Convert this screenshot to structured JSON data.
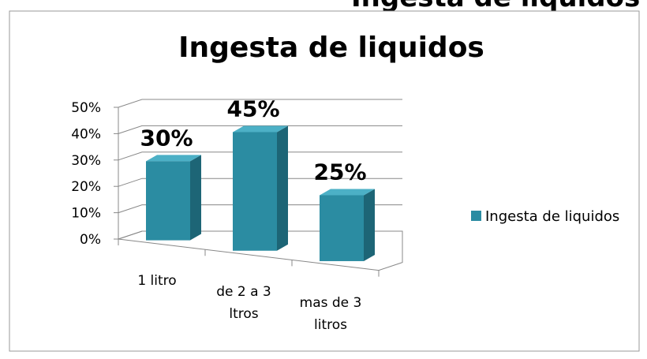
{
  "page_heading": "Ingesta de liquidos",
  "chart_data": {
    "type": "bar3d",
    "title": "Ingesta de liquidos",
    "categories": [
      "1 litro",
      "de 2 a 3 ltros",
      "mas de 3 litros"
    ],
    "series": [
      {
        "name": "Ingesta de liquidos",
        "color": "#2b8ca2",
        "values": [
          30,
          45,
          25
        ],
        "value_labels": [
          "30%",
          "45%",
          "25%"
        ]
      }
    ],
    "ylim": [
      0,
      50
    ],
    "yticks": [
      {
        "value": 0,
        "label": "0%"
      },
      {
        "value": 10,
        "label": "10%"
      },
      {
        "value": 20,
        "label": "20%"
      },
      {
        "value": 30,
        "label": "30%"
      },
      {
        "value": 40,
        "label": "40%"
      },
      {
        "value": 50,
        "label": "50%"
      }
    ],
    "grid": true,
    "legend": "right"
  }
}
